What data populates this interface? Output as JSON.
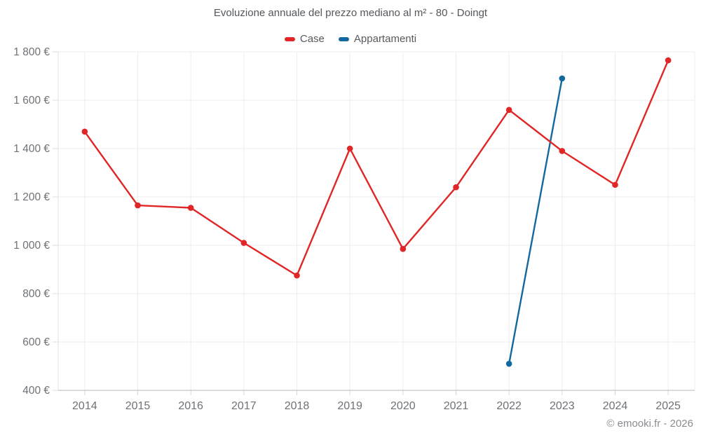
{
  "chart": {
    "title": "Evoluzione annuale del prezzo mediano al m² - 80 - Doingt",
    "footer": "© emooki.fr - 2026"
  },
  "legend": {
    "items": [
      {
        "label": "Case",
        "color": "#e02626"
      },
      {
        "label": "Appartamenti",
        "color": "#12699e"
      }
    ]
  },
  "chart_data": {
    "type": "line",
    "title": "Evoluzione annuale del prezzo mediano al m² - 80 - Doingt",
    "xlabel": "",
    "ylabel": "",
    "categories": [
      "2014",
      "2015",
      "2016",
      "2017",
      "2018",
      "2019",
      "2020",
      "2021",
      "2022",
      "2023",
      "2024",
      "2025"
    ],
    "series": [
      {
        "name": "Case",
        "color": "#e02626",
        "values": [
          1470,
          1165,
          1155,
          1010,
          875,
          1400,
          985,
          1240,
          1560,
          1390,
          1250,
          1765
        ]
      },
      {
        "name": "Appartamenti",
        "color": "#12699e",
        "values": [
          null,
          null,
          null,
          null,
          null,
          null,
          null,
          null,
          510,
          1690,
          null,
          null
        ]
      }
    ],
    "ylim": [
      400,
      1800
    ],
    "yticks": [
      {
        "value": 1800,
        "label": "1 800 €"
      },
      {
        "value": 1600,
        "label": "1 600 €"
      },
      {
        "value": 1400,
        "label": "1 400 €"
      },
      {
        "value": 1200,
        "label": "1 200 €"
      },
      {
        "value": 1000,
        "label": "1 000 €"
      },
      {
        "value": 800,
        "label": "800 €"
      },
      {
        "value": 600,
        "label": "600 €"
      },
      {
        "value": 400,
        "label": "400 €"
      }
    ],
    "grid": true,
    "legend_position": "top",
    "currency": "€"
  }
}
